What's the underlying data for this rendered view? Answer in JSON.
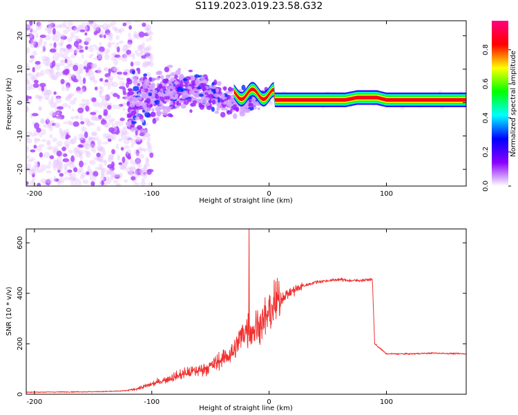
{
  "title": "S119.2023.019.23.58.G32",
  "chart_data": [
    {
      "type": "heatmap",
      "xlabel": "Height of straight line (km)",
      "ylabel": "Frequency (Hz)",
      "xlim": [
        -207,
        168
      ],
      "ylim": [
        -25,
        24.5
      ],
      "x_ticks": [
        -200,
        -100,
        0,
        100
      ],
      "y_ticks": [
        -20,
        -10,
        0,
        10,
        20
      ],
      "colorbar": {
        "label": "Normalized spectral amplitude",
        "range": [
          0,
          0.97
        ],
        "ticks": [
          "0.0",
          "0.2",
          "0.4",
          "0.6",
          "0.8"
        ],
        "tick_values": [
          0,
          0.2,
          0.4,
          0.6,
          0.8
        ],
        "colors": [
          "#ffffff",
          "#8a00ff",
          "#0000ff",
          "#00ffff",
          "#00ff00",
          "#ffff00",
          "#ff0000",
          "#ff0080"
        ]
      },
      "features": {
        "scattered_noise_x": [
          -207,
          -120
        ],
        "transition_x": [
          -120,
          0
        ],
        "band_center_hz": [
          {
            "x": 5,
            "y": 0.8
          },
          {
            "x": 65,
            "y": 0.8
          },
          {
            "x": 75,
            "y": 1.5
          },
          {
            "x": 92,
            "y": 1.5
          },
          {
            "x": 100,
            "y": 0.8
          },
          {
            "x": 112,
            "y": 0.8
          },
          {
            "x": 168,
            "y": 0.8
          }
        ]
      },
      "grid": false
    },
    {
      "type": "line",
      "xlabel": "Height of straight line (km)",
      "ylabel": "SNR (10 * v/v)",
      "xlim": [
        -207,
        168
      ],
      "ylim": [
        0,
        655
      ],
      "x_ticks": [
        -200,
        -100,
        0,
        100
      ],
      "y_ticks": [
        0,
        200,
        400,
        600
      ],
      "color": "#f03030",
      "series": [
        {
          "x": [
            -207,
            -180,
            -150,
            -130,
            -120,
            -110,
            -100,
            -90,
            -80,
            -70,
            -60,
            -50,
            -40,
            -30,
            -25,
            -20,
            -15,
            -10,
            -5,
            0,
            5,
            10,
            20,
            30,
            40,
            50,
            60,
            70,
            80,
            88,
            90,
            95,
            100,
            120,
            140,
            168
          ],
          "y": [
            8,
            9,
            10,
            12,
            15,
            25,
            40,
            55,
            70,
            85,
            95,
            110,
            140,
            170,
            220,
            260,
            250,
            270,
            290,
            320,
            350,
            380,
            410,
            430,
            445,
            450,
            455,
            450,
            452,
            455,
            200,
            180,
            160,
            160,
            163,
            160
          ]
        }
      ],
      "spike": {
        "x": -17,
        "y": 655
      },
      "grid": false
    }
  ]
}
